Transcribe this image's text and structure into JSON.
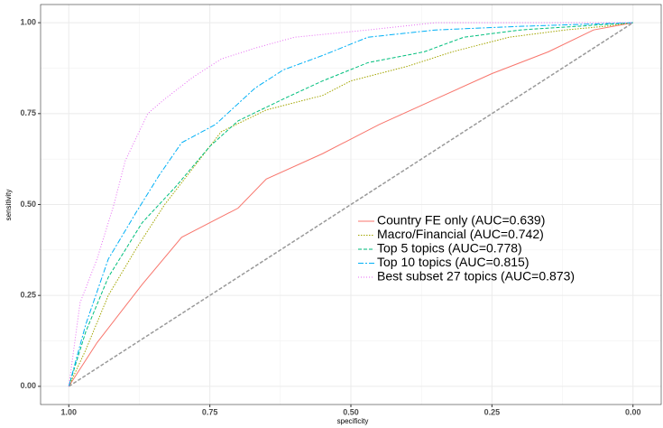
{
  "chart_data": {
    "type": "line",
    "x_label": "specificity",
    "y_label": "sensitivity",
    "xlim": [
      1.05,
      -0.05
    ],
    "ylim": [
      -0.05,
      1.05
    ],
    "xticks": [
      {
        "value": 1,
        "label": "1.00"
      },
      {
        "value": 0.75,
        "label": "0.75"
      },
      {
        "value": 0.5,
        "label": "0.50"
      },
      {
        "value": 0.25,
        "label": "0.25"
      },
      {
        "value": 0,
        "label": "0.00"
      }
    ],
    "yticks": [
      {
        "value": 0,
        "label": "0.00"
      },
      {
        "value": 0.25,
        "label": "0.25"
      },
      {
        "value": 0.5,
        "label": "0.50"
      },
      {
        "value": 0.75,
        "label": "0.75"
      },
      {
        "value": 1,
        "label": "1.00"
      }
    ],
    "grid": true,
    "series": [
      {
        "name": "Country FE only (AUC=0.639)",
        "color": "#F8766D",
        "dash": "none",
        "x": [
          1,
          0.95,
          0.87,
          0.8,
          0.7,
          0.65,
          0.55,
          0.45,
          0.35,
          0.25,
          0.15,
          0.07,
          0
        ],
        "values": [
          0,
          0.12,
          0.28,
          0.41,
          0.49,
          0.57,
          0.64,
          0.72,
          0.79,
          0.86,
          0.92,
          0.98,
          1
        ]
      },
      {
        "name": "Macro/Financial (AUC=0.742)",
        "color": "#A3A500",
        "dash": "1.5 1.5",
        "x": [
          1,
          0.97,
          0.93,
          0.88,
          0.83,
          0.78,
          0.73,
          0.65,
          0.55,
          0.5,
          0.4,
          0.32,
          0.22,
          0.12,
          0.05,
          0
        ],
        "values": [
          0,
          0.1,
          0.25,
          0.38,
          0.5,
          0.6,
          0.7,
          0.76,
          0.8,
          0.84,
          0.88,
          0.92,
          0.96,
          0.98,
          0.99,
          1
        ]
      },
      {
        "name": "Top 5 topics (AUC=0.778)",
        "color": "#00BF7D",
        "dash": "4 2",
        "x": [
          1,
          0.97,
          0.93,
          0.87,
          0.81,
          0.75,
          0.7,
          0.62,
          0.55,
          0.47,
          0.37,
          0.3,
          0.2,
          0.1,
          0
        ],
        "values": [
          0,
          0.15,
          0.3,
          0.45,
          0.55,
          0.66,
          0.73,
          0.79,
          0.84,
          0.89,
          0.92,
          0.96,
          0.98,
          0.99,
          1
        ]
      },
      {
        "name": "Top 10 topics (AUC=0.815)",
        "color": "#00B0F6",
        "dash": "6 2 2 2",
        "x": [
          1,
          0.97,
          0.93,
          0.88,
          0.84,
          0.8,
          0.74,
          0.67,
          0.62,
          0.55,
          0.47,
          0.35,
          0.2,
          0
        ],
        "values": [
          0,
          0.17,
          0.35,
          0.48,
          0.58,
          0.67,
          0.72,
          0.82,
          0.87,
          0.91,
          0.96,
          0.98,
          0.99,
          1
        ]
      },
      {
        "name": "Best subset 27 topics (AUC=0.873)",
        "color": "#E76BF3",
        "dash": "1 2",
        "x": [
          1,
          0.98,
          0.95,
          0.92,
          0.9,
          0.86,
          0.83,
          0.78,
          0.73,
          0.67,
          0.6,
          0.47,
          0.35,
          0
        ],
        "values": [
          0,
          0.23,
          0.35,
          0.5,
          0.62,
          0.75,
          0.79,
          0.85,
          0.9,
          0.93,
          0.96,
          0.98,
          1,
          1
        ]
      }
    ]
  }
}
